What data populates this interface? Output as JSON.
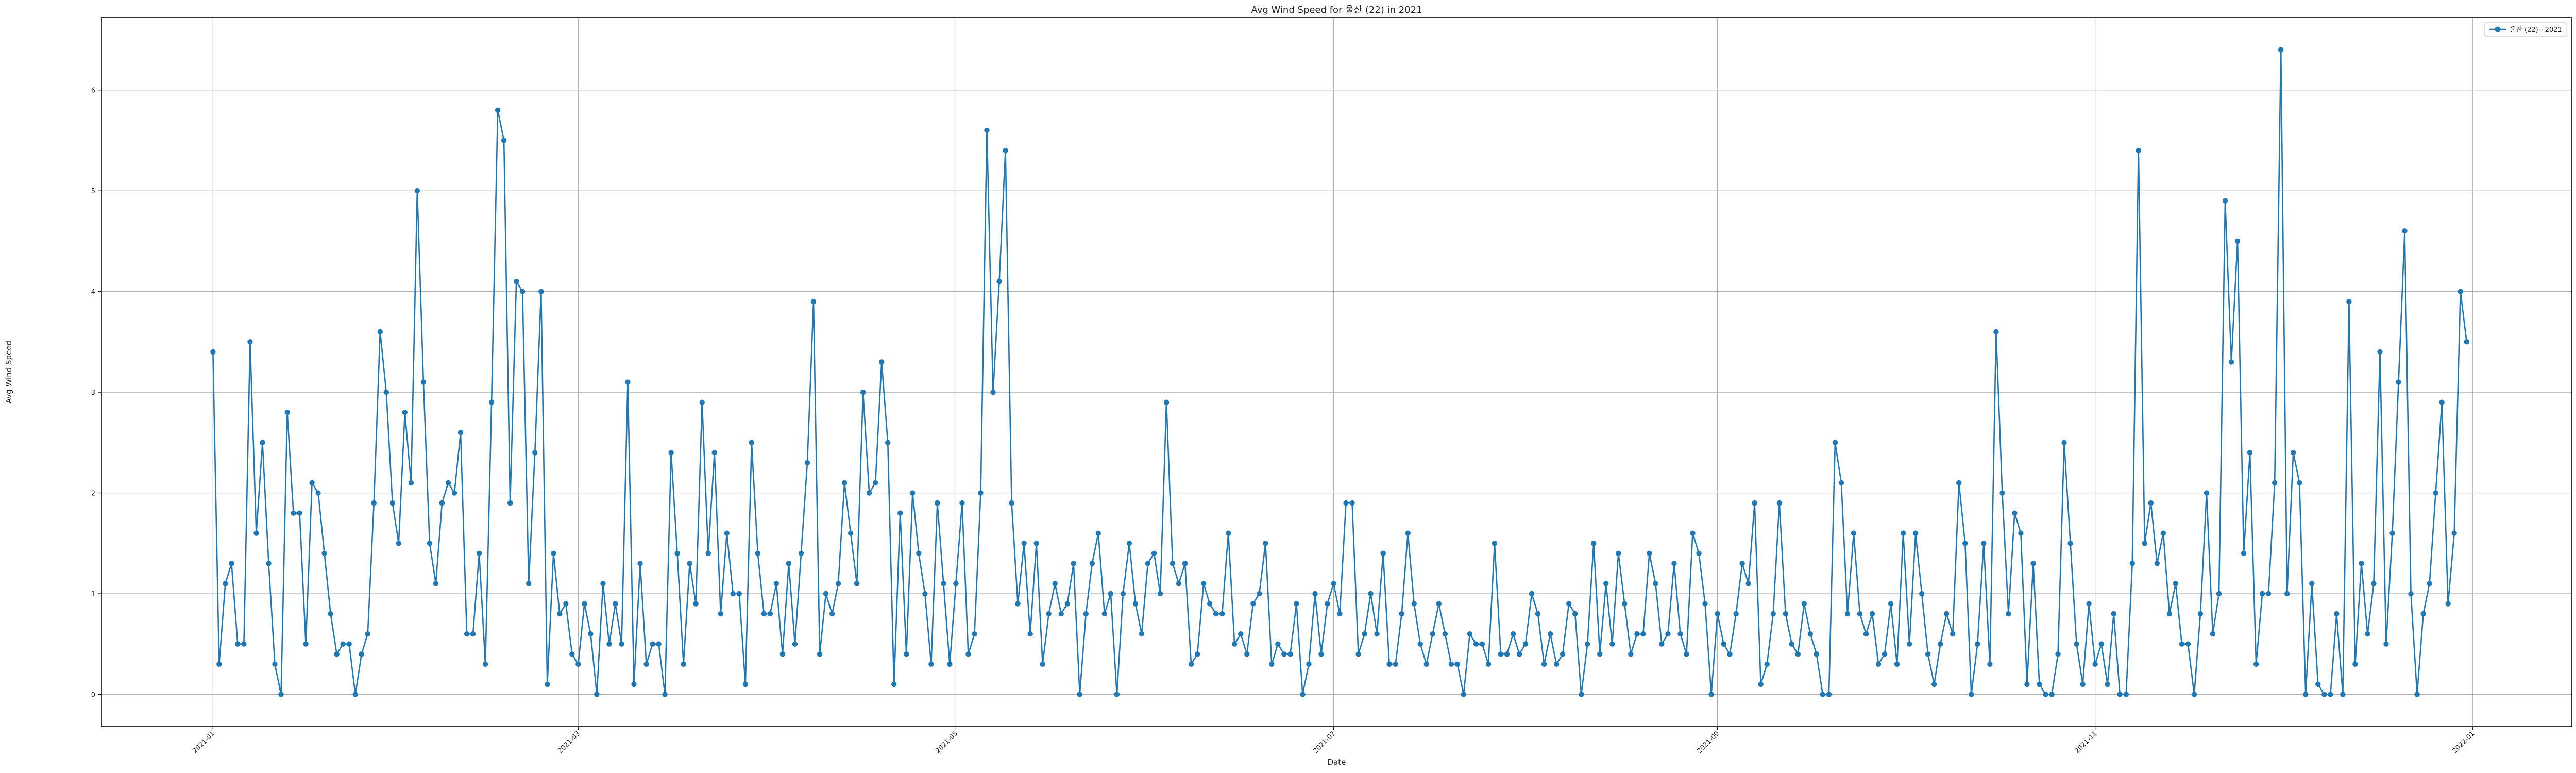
{
  "chart_data": {
    "type": "line",
    "title": "Avg Wind Speed for 울산 (22) in 2021",
    "xlabel": "Date",
    "ylabel": "Avg Wind Speed",
    "x_start": "2021-01-01",
    "x_end": "2021-12-31",
    "xlim": [
      "2020-12-14",
      "2022-01-17"
    ],
    "ylim": [
      -0.32,
      6.72
    ],
    "xticks": [
      "2021-01",
      "2021-03",
      "2021-05",
      "2021-07",
      "2021-09",
      "2021-11",
      "2022-01"
    ],
    "yticks": [
      "0",
      "1",
      "2",
      "3",
      "4",
      "5",
      "6"
    ],
    "grid": true,
    "legend_position": "top-right",
    "colors": {
      "line": "#1f77b4",
      "grid": "#b0b0b0",
      "axes": "#000000"
    },
    "series": [
      {
        "name": "울산 (22) - 2021",
        "values": [
          3.4,
          0.3,
          1.1,
          1.3,
          0.5,
          0.5,
          3.5,
          1.6,
          2.5,
          1.3,
          0.3,
          0.0,
          2.8,
          1.8,
          1.8,
          0.5,
          2.1,
          2.0,
          1.4,
          0.8,
          0.4,
          0.5,
          0.5,
          0.0,
          0.4,
          0.6,
          1.9,
          3.6,
          3.0,
          1.9,
          1.5,
          2.8,
          2.1,
          5.0,
          3.1,
          1.5,
          1.1,
          1.9,
          2.1,
          2.0,
          2.6,
          0.6,
          0.6,
          1.4,
          0.3,
          2.9,
          5.8,
          5.5,
          1.9,
          4.1,
          4.0,
          1.1,
          2.4,
          4.0,
          0.1,
          1.4,
          0.8,
          0.9,
          0.4,
          0.3,
          0.9,
          0.6,
          0.0,
          1.1,
          0.5,
          0.9,
          0.5,
          3.1,
          0.1,
          1.3,
          0.3,
          0.5,
          0.5,
          0.0,
          2.4,
          1.4,
          0.3,
          1.3,
          0.9,
          2.9,
          1.4,
          2.4,
          0.8,
          1.6,
          1.0,
          1.0,
          0.1,
          2.5,
          1.4,
          0.8,
          0.8,
          1.1,
          0.4,
          1.3,
          0.5,
          1.4,
          2.3,
          3.9,
          0.4,
          1.0,
          0.8,
          1.1,
          2.1,
          1.6,
          1.1,
          3.0,
          2.0,
          2.1,
          3.3,
          2.5,
          0.1,
          1.8,
          0.4,
          2.0,
          1.4,
          1.0,
          0.3,
          1.9,
          1.1,
          0.3,
          1.1,
          1.9,
          0.4,
          0.6,
          2.0,
          5.6,
          3.0,
          4.1,
          5.4,
          1.9,
          0.9,
          1.5,
          0.6,
          1.5,
          0.3,
          0.8,
          1.1,
          0.8,
          0.9,
          1.3,
          0.0,
          0.8,
          1.3,
          1.6,
          0.8,
          1.0,
          0.0,
          1.0,
          1.5,
          0.9,
          0.6,
          1.3,
          1.4,
          1.0,
          2.9,
          1.3,
          1.1,
          1.3,
          0.3,
          0.4,
          1.1,
          0.9,
          0.8,
          0.8,
          1.6,
          0.5,
          0.6,
          0.4,
          0.9,
          1.0,
          1.5,
          0.3,
          0.5,
          0.4,
          0.4,
          0.9,
          0.0,
          0.3,
          1.0,
          0.4,
          0.9,
          1.1,
          0.8,
          1.9,
          1.9,
          0.4,
          0.6,
          1.0,
          0.6,
          1.4,
          0.3,
          0.3,
          0.8,
          1.6,
          0.9,
          0.5,
          0.3,
          0.6,
          0.9,
          0.6,
          0.3,
          0.3,
          0.0,
          0.6,
          0.5,
          0.5,
          0.3,
          1.5,
          0.4,
          0.4,
          0.6,
          0.4,
          0.5,
          1.0,
          0.8,
          0.3,
          0.6,
          0.3,
          0.4,
          0.9,
          0.8,
          0.0,
          0.5,
          1.5,
          0.4,
          1.1,
          0.5,
          1.4,
          0.9,
          0.4,
          0.6,
          0.6,
          1.4,
          1.1,
          0.5,
          0.6,
          1.3,
          0.6,
          0.4,
          1.6,
          1.4,
          0.9,
          0.0,
          0.8,
          0.5,
          0.4,
          0.8,
          1.3,
          1.1,
          1.9,
          0.1,
          0.3,
          0.8,
          1.9,
          0.8,
          0.5,
          0.4,
          0.9,
          0.6,
          0.4,
          0.0,
          0.0,
          2.5,
          2.1,
          0.8,
          1.6,
          0.8,
          0.6,
          0.8,
          0.3,
          0.4,
          0.9,
          0.3,
          1.6,
          0.5,
          1.6,
          1.0,
          0.4,
          0.1,
          0.5,
          0.8,
          0.6,
          2.1,
          1.5,
          0.0,
          0.5,
          1.5,
          0.3,
          3.6,
          2.0,
          0.8,
          1.8,
          1.6,
          0.1,
          1.3,
          0.1,
          0.0,
          0.0,
          0.4,
          2.5,
          1.5,
          0.5,
          0.1,
          0.9,
          0.3,
          0.5,
          0.1,
          0.8,
          0.0,
          0.0,
          1.3,
          5.4,
          1.5,
          1.9,
          1.3,
          1.6,
          0.8,
          1.1,
          0.5,
          0.5,
          0.0,
          0.8,
          2.0,
          0.6,
          1.0,
          4.9,
          3.3,
          4.5,
          1.4,
          2.4,
          0.3,
          1.0,
          1.0,
          2.1,
          6.4,
          1.0,
          2.4,
          2.1,
          0.0,
          1.1,
          0.1,
          0.0,
          0.0,
          0.8,
          0.0,
          3.9,
          0.3,
          1.3,
          0.6,
          1.1,
          3.4,
          0.5,
          1.6,
          3.1,
          4.6,
          1.0,
          0.0,
          0.8,
          1.1,
          2.0,
          2.9,
          0.9,
          1.6,
          4.0,
          3.5
        ]
      }
    ]
  }
}
